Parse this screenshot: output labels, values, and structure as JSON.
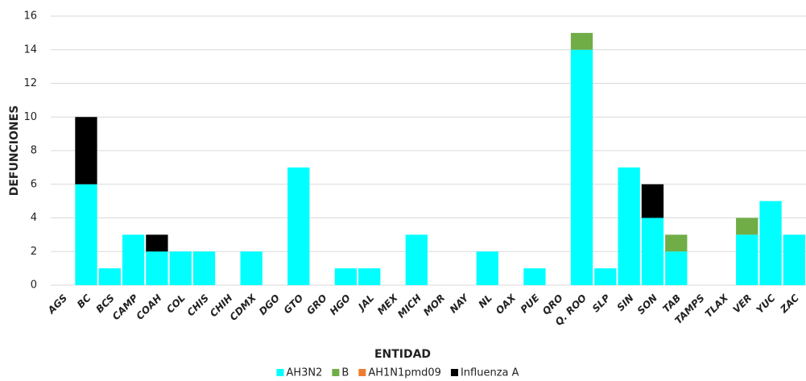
{
  "chart_data": {
    "type": "stacked_bar",
    "x_label": "ENTIDAD",
    "y_label": "DEFUNCIONES",
    "categories": [
      "AGS",
      "BC",
      "BCS",
      "CAMP",
      "COAH",
      "COL",
      "CHIS",
      "CHIH",
      "CDMX",
      "DGO",
      "GTO",
      "GRO",
      "HGO",
      "JAL",
      "MEX",
      "MICH",
      "MOR",
      "NAY",
      "NL",
      "OAX",
      "PUE",
      "QRO",
      "Q. ROO",
      "SLP",
      "SIN",
      "SON",
      "TAB",
      "TAMPS",
      "TLAX",
      "VER",
      "YUC",
      "ZAC"
    ],
    "series": [
      {
        "name": "AH3N2",
        "color": "#00ffff",
        "values": [
          0,
          6,
          1,
          3,
          2,
          2,
          2,
          0,
          2,
          0,
          7,
          0,
          1,
          1,
          0,
          3,
          0,
          0,
          2,
          0,
          1,
          0,
          14,
          1,
          7,
          4,
          2,
          0,
          0,
          3,
          5,
          3
        ]
      },
      {
        "name": "B",
        "color": "#70ad47",
        "values": [
          0,
          0,
          0,
          0,
          0,
          0,
          0,
          0,
          0,
          0,
          0,
          0,
          0,
          0,
          0,
          0,
          0,
          0,
          0,
          0,
          0,
          0,
          1,
          0,
          0,
          0,
          1,
          0,
          0,
          1,
          0,
          0
        ]
      },
      {
        "name": "AH1N1pmd09",
        "color": "#ed7d31",
        "values": [
          0,
          0,
          0,
          0,
          0,
          0,
          0,
          0,
          0,
          0,
          0,
          0,
          0,
          0,
          0,
          0,
          0,
          0,
          0,
          0,
          0,
          0,
          0,
          0,
          0,
          0,
          0,
          0,
          0,
          0,
          0,
          0
        ]
      },
      {
        "name": "Influenza A",
        "color": "#000000",
        "values": [
          0,
          4,
          0,
          0,
          1,
          0,
          0,
          0,
          0,
          0,
          0,
          0,
          0,
          0,
          0,
          0,
          0,
          0,
          0,
          0,
          0,
          0,
          0,
          0,
          0,
          2,
          0,
          0,
          0,
          0,
          0,
          0
        ]
      }
    ],
    "ylim": [
      0,
      16
    ],
    "yticks": [
      0,
      2,
      4,
      6,
      8,
      10,
      12,
      14,
      16
    ],
    "grid": true,
    "legend": "bottom"
  }
}
